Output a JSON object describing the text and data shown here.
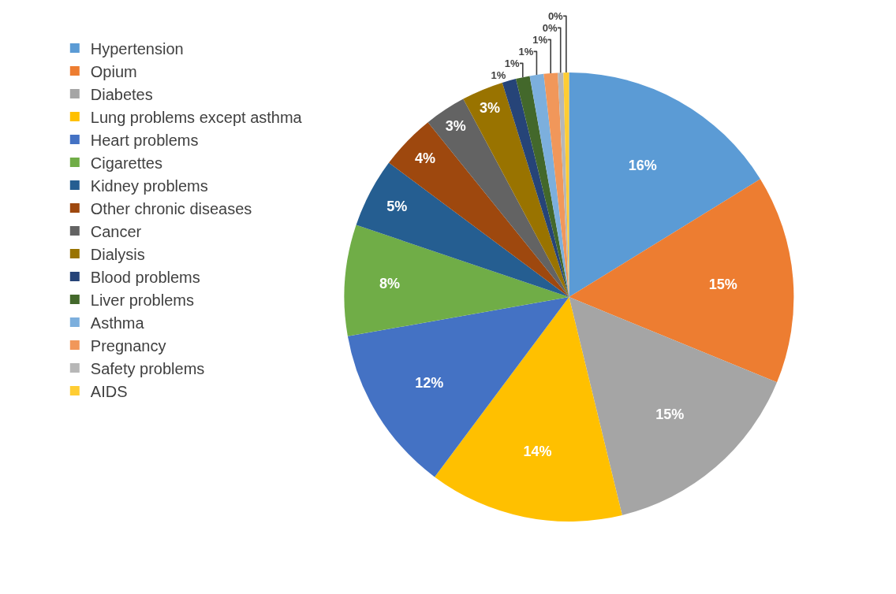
{
  "chart_data": {
    "type": "pie",
    "categories": [
      "Hypertension",
      "Opium",
      "Diabetes",
      "Lung problems except asthma",
      "Heart problems",
      "Cigarettes",
      "Kidney problems",
      "Other chronic diseases",
      "Cancer",
      "Dialysis",
      "Blood problems",
      "Liver problems",
      "Asthma",
      "Pregnancy",
      "Safety problems",
      "AIDS"
    ],
    "values": [
      16.2,
      15,
      15,
      14,
      12,
      8,
      5,
      4,
      3,
      3,
      1,
      1,
      1,
      1,
      0.4,
      0.4
    ],
    "value_labels": [
      "16%",
      "15%",
      "15%",
      "14%",
      "12%",
      "8%",
      "5%",
      "4%",
      "3%",
      "3%",
      "1%",
      "1%",
      "1%",
      "1%",
      "0%",
      "0%"
    ],
    "colors": [
      "#5b9bd5",
      "#ed7d31",
      "#a5a5a5",
      "#ffc000",
      "#4472c4",
      "#70ad47",
      "#255e91",
      "#9e480e",
      "#636363",
      "#997300",
      "#264478",
      "#43682b",
      "#7cafdd",
      "#f1975a",
      "#b7b7b7",
      "#ffcd33"
    ],
    "legend": "left"
  }
}
